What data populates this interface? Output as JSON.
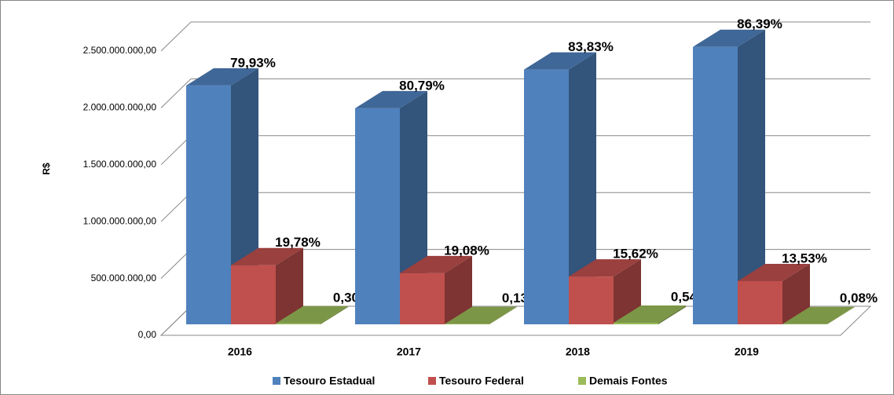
{
  "chart_data": {
    "type": "bar3d",
    "ylabel": "R$",
    "categories": [
      "2016",
      "2017",
      "2018",
      "2019"
    ],
    "series": [
      {
        "name": "Tesouro Estadual",
        "color": "#4f81bd",
        "values": [
          2100000000,
          1900000000,
          2240000000,
          2440000000
        ],
        "percent_labels": [
          "79,93%",
          "80,79%",
          "83,83%",
          "86,39%"
        ]
      },
      {
        "name": "Tesouro Federal",
        "color": "#c0504d",
        "values": [
          520000000,
          450000000,
          420000000,
          380000000
        ],
        "percent_labels": [
          "19,78%",
          "19,08%",
          "15,62%",
          "13,53%"
        ]
      },
      {
        "name": "Demais Fontes",
        "color": "#9bbb59",
        "values": [
          8000000,
          3000000,
          14000000,
          2000000
        ],
        "percent_labels": [
          "0,30%",
          "0,13%",
          "0,54%",
          "0,08%"
        ]
      }
    ],
    "ylim": [
      0,
      2500000000
    ],
    "yticks": [
      {
        "value": 0,
        "label": "0,00"
      },
      {
        "value": 500000000,
        "label": "500.000.000,00"
      },
      {
        "value": 1000000000,
        "label": "1.000.000.000,00"
      },
      {
        "value": 1500000000,
        "label": "1.500.000.000,00"
      },
      {
        "value": 2000000000,
        "label": "2.000.000.000,00"
      },
      {
        "value": 2500000000,
        "label": "2.500.000.000,00"
      }
    ],
    "grid": true,
    "legend": "bottom"
  }
}
